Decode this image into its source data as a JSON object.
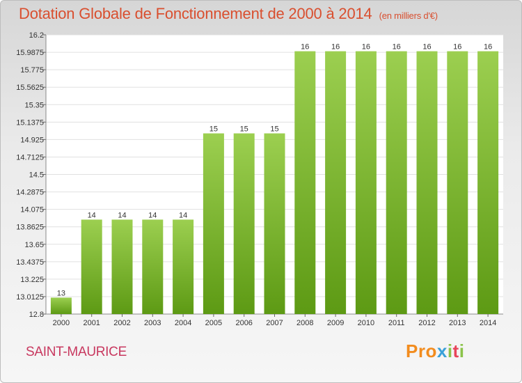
{
  "header": {
    "title": "Dotation Globale de Fonctionnement de 2000 à 2014",
    "unit": "(en milliers d'€)"
  },
  "footer": {
    "place": "SAINT-MAURICE",
    "logo": [
      "Pro",
      "x",
      "i",
      "t",
      "i"
    ]
  },
  "colors": {
    "bar_top": "#9ccf50",
    "bar_bottom": "#5d9a14",
    "title": "#d94f2f",
    "place": "#c8385f"
  },
  "chart_data": {
    "type": "bar",
    "categories": [
      "2000",
      "2001",
      "2002",
      "2003",
      "2004",
      "2005",
      "2006",
      "2007",
      "2008",
      "2009",
      "2010",
      "2011",
      "2012",
      "2013",
      "2014"
    ],
    "values": [
      13.0,
      13.95,
      13.95,
      13.95,
      13.95,
      15.0,
      15.0,
      15.0,
      16.0,
      16.0,
      16.0,
      16.0,
      16.0,
      16.0,
      16.0
    ],
    "data_labels": [
      "13",
      "14",
      "14",
      "14",
      "14",
      "15",
      "15",
      "15",
      "16",
      "16",
      "16",
      "16",
      "16",
      "16",
      "16"
    ],
    "ylim": [
      12.8,
      16.2
    ],
    "yticks": [
      "12.8",
      "13.0125",
      "13.225",
      "13.4375",
      "13.65",
      "13.8625",
      "14.075",
      "14.2875",
      "14.5",
      "14.7125",
      "14.925",
      "15.1375",
      "15.35",
      "15.5625",
      "15.775",
      "15.9875",
      "16.2"
    ],
    "grid": true,
    "title": "Dotation Globale de Fonctionnement de 2000 à 2014",
    "xlabel": "",
    "ylabel": ""
  }
}
